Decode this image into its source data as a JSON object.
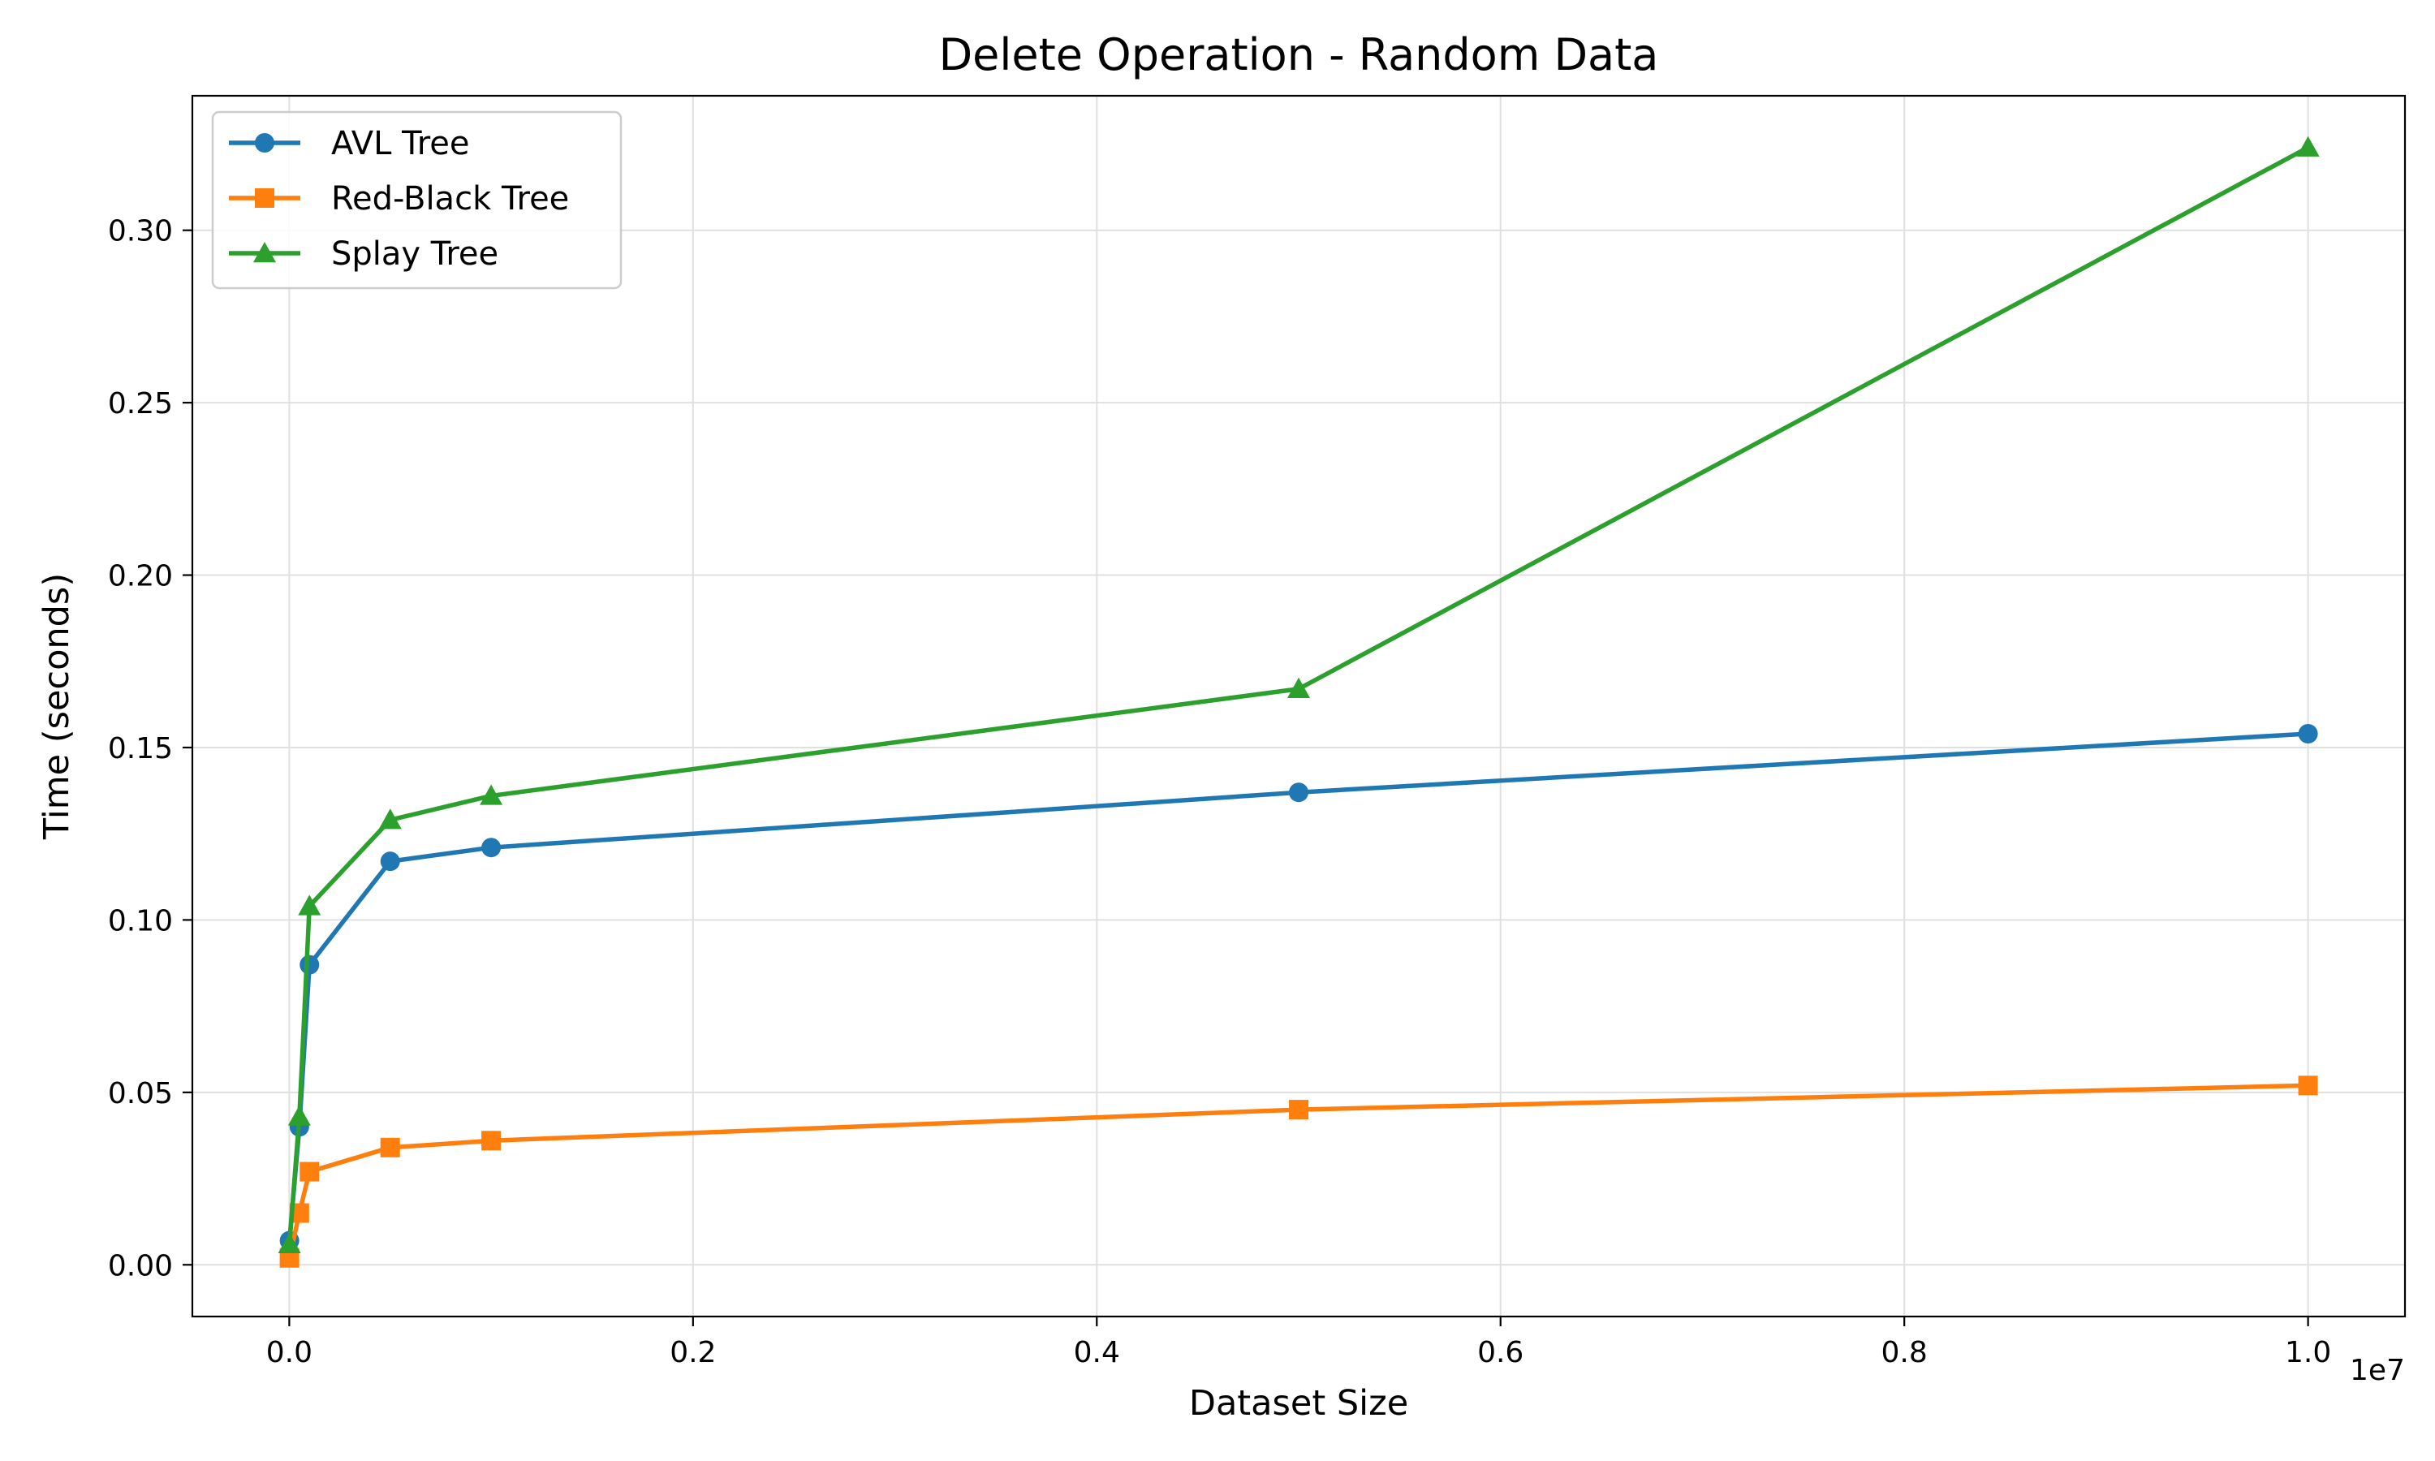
{
  "chart_data": {
    "type": "line",
    "title": "Delete Operation - Random Data",
    "xlabel": "Dataset Size",
    "ylabel": "Time (seconds)",
    "x_offset_label": "1e7",
    "x": [
      1000,
      50000,
      100000,
      500000,
      1000000,
      5000000,
      10000000
    ],
    "xlim": [
      -480000,
      10480000
    ],
    "ylim": [
      -0.015,
      0.339
    ],
    "x_ticks": [
      0,
      2000000,
      4000000,
      6000000,
      8000000,
      10000000
    ],
    "x_tick_labels": [
      "0.0",
      "0.2",
      "0.4",
      "0.6",
      "0.8",
      "1.0"
    ],
    "y_ticks": [
      0.0,
      0.05,
      0.1,
      0.15,
      0.2,
      0.25,
      0.3
    ],
    "y_tick_labels": [
      "0.00",
      "0.05",
      "0.10",
      "0.15",
      "0.20",
      "0.25",
      "0.30"
    ],
    "grid": true,
    "legend_position": "top-left",
    "series": [
      {
        "name": "AVL Tree",
        "color": "#1f77b4",
        "marker": "circle",
        "values": [
          0.007,
          0.04,
          0.087,
          0.117,
          0.121,
          0.137,
          0.154
        ]
      },
      {
        "name": "Red-Black Tree",
        "color": "#ff7f0e",
        "marker": "square",
        "values": [
          0.002,
          0.015,
          0.027,
          0.034,
          0.036,
          0.045,
          0.052
        ]
      },
      {
        "name": "Splay Tree",
        "color": "#2ca02c",
        "marker": "triangle",
        "values": [
          0.006,
          0.043,
          0.104,
          0.129,
          0.136,
          0.167,
          0.324
        ]
      }
    ]
  }
}
